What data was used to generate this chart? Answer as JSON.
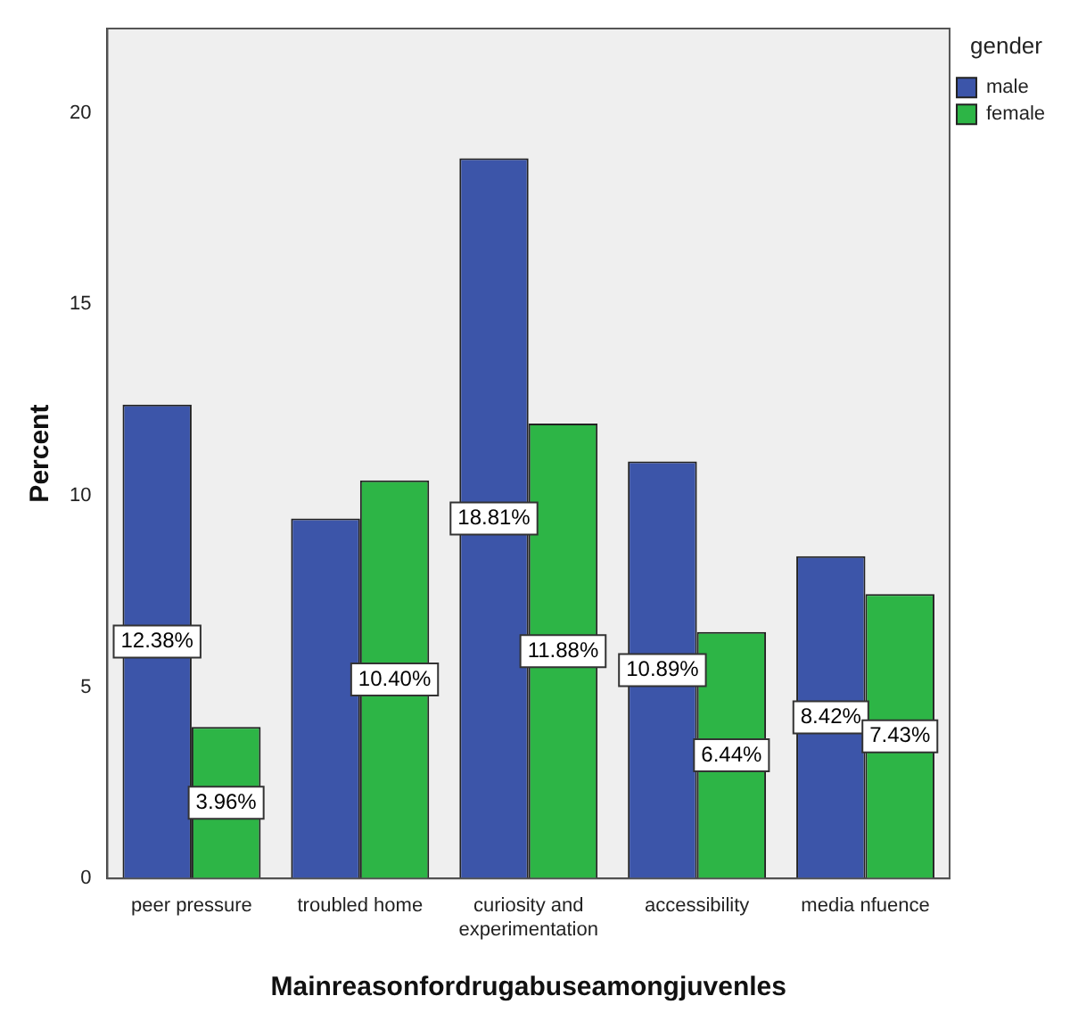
{
  "chart_data": {
    "type": "bar",
    "xlabel": "Mainreasonfordrugabuseamongjuvenles",
    "ylabel": "Percent",
    "legend_title": "gender",
    "categories": [
      "peer pressure",
      "troubled home",
      [
        "curiosity and",
        "experimentation"
      ],
      "accessibility",
      "media nfuence"
    ],
    "series": [
      {
        "name": "male",
        "color": "#3c55a9",
        "values": [
          12.38,
          9.4,
          18.81,
          10.89,
          8.42
        ],
        "value_labels": [
          "12.38%",
          null,
          "18.81%",
          "10.89%",
          "8.42%"
        ]
      },
      {
        "name": "female",
        "color": "#2db546",
        "values": [
          3.96,
          10.4,
          11.88,
          6.44,
          7.43
        ],
        "value_labels": [
          "3.96%",
          "10.40%",
          "11.88%",
          "6.44%",
          "7.43%"
        ]
      }
    ],
    "ylim": [
      0,
      22.2
    ],
    "yticks": [
      0,
      5,
      10,
      15,
      20
    ],
    "grid": false,
    "legend": "top right"
  }
}
